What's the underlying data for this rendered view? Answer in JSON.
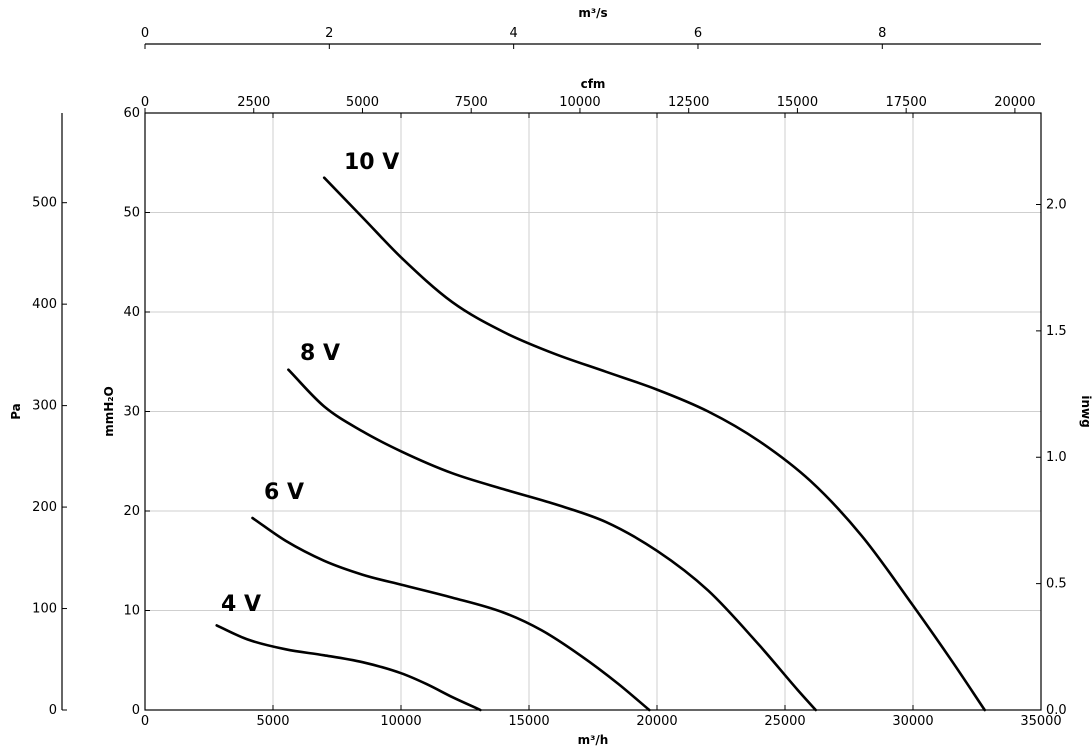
{
  "chart_data": {
    "type": "line",
    "xlabel": "m³/h",
    "ylabel": "mmH₂O",
    "xlim": [
      0,
      35000
    ],
    "ylim": [
      0,
      60
    ],
    "x_ticks": [
      0,
      5000,
      10000,
      15000,
      20000,
      25000,
      30000,
      35000
    ],
    "y_ticks": [
      0,
      10,
      20,
      30,
      40,
      50,
      60
    ],
    "grid": true,
    "secondary_axes": {
      "top_m3s": {
        "label": "m³/s",
        "range": [
          0,
          9.722
        ],
        "ticks": [
          0,
          2,
          4,
          6,
          8
        ]
      },
      "top_cfm": {
        "label": "cfm",
        "range": [
          0,
          20600
        ],
        "ticks": [
          0,
          2500,
          5000,
          7500,
          10000,
          12500,
          15000,
          17500,
          20000
        ]
      },
      "left_pa": {
        "label": "Pa",
        "range": [
          0,
          588.4
        ],
        "ticks": [
          0,
          100,
          200,
          300,
          400,
          500
        ]
      },
      "right_inwg": {
        "label": "inwg",
        "range": [
          0,
          2.362
        ],
        "ticks": [
          "0.0",
          "0.5",
          "1.0",
          "1.5",
          "2.0"
        ]
      }
    },
    "series": [
      {
        "name": "10 V",
        "x": [
          7000,
          8500,
          10000,
          12000,
          14000,
          16000,
          18000,
          20000,
          22000,
          24000,
          26000,
          28000,
          30000,
          31500,
          32800
        ],
        "y": [
          53.5,
          49.5,
          45.5,
          41,
          38,
          35.8,
          34,
          32.2,
          30,
          27,
          23,
          17.5,
          10.5,
          5,
          0
        ]
      },
      {
        "name": "8 V",
        "x": [
          5600,
          7000,
          8500,
          10000,
          12000,
          14000,
          16000,
          18000,
          20000,
          22000,
          24000,
          25500,
          26200
        ],
        "y": [
          34.2,
          30.5,
          28,
          26,
          23.8,
          22.2,
          20.7,
          18.9,
          16,
          12,
          6.5,
          2,
          0
        ]
      },
      {
        "name": "6 V",
        "x": [
          4200,
          5500,
          7000,
          8500,
          10000,
          12000,
          14000,
          15500,
          17000,
          18500,
          19700
        ],
        "y": [
          19.3,
          17,
          15,
          13.6,
          12.6,
          11.3,
          9.8,
          8,
          5.5,
          2.6,
          0
        ]
      },
      {
        "name": "4 V",
        "x": [
          2800,
          4000,
          5500,
          7000,
          8500,
          10000,
          11000,
          12000,
          13100
        ],
        "y": [
          8.5,
          7.1,
          6.1,
          5.5,
          4.8,
          3.7,
          2.6,
          1.3,
          0
        ]
      }
    ],
    "annotations": [
      {
        "text": "10 V",
        "series": "10 V"
      },
      {
        "text": "8 V",
        "series": "8 V"
      },
      {
        "text": "6 V",
        "series": "6 V"
      },
      {
        "text": "4 V",
        "series": "4 V"
      }
    ]
  }
}
